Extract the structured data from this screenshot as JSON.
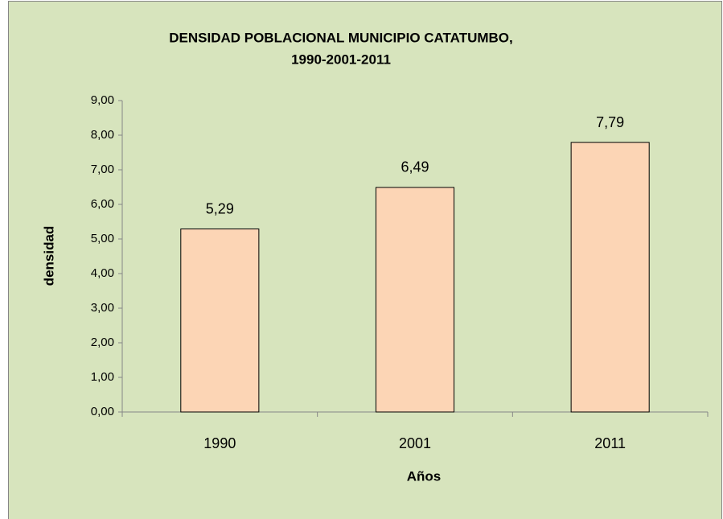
{
  "chart_data": {
    "type": "bar",
    "title": [
      "DENSIDAD POBLACIONAL  MUNICIPIO CATATUMBO,",
      "1990-2001-2011"
    ],
    "x_label": "Años",
    "y_label": "densidad",
    "categories": [
      "1990",
      "2001",
      "2011"
    ],
    "values": [
      5.29,
      6.49,
      7.79
    ],
    "value_labels": [
      "5,29",
      "6,49",
      "7,79"
    ],
    "color": "#fcd5b5",
    "ylim": [
      0,
      9
    ],
    "yticks": [
      {
        "value": 0,
        "label": "0,00"
      },
      {
        "value": 1,
        "label": "1,00"
      },
      {
        "value": 2,
        "label": "2,00"
      },
      {
        "value": 3,
        "label": "3,00"
      },
      {
        "value": 4,
        "label": "4,00"
      },
      {
        "value": 5,
        "label": "5,00"
      },
      {
        "value": 6,
        "label": "6,00"
      },
      {
        "value": 7,
        "label": "7,00"
      },
      {
        "value": 8,
        "label": "8,00"
      },
      {
        "value": 9,
        "label": "9,00"
      }
    ],
    "grid": false
  }
}
